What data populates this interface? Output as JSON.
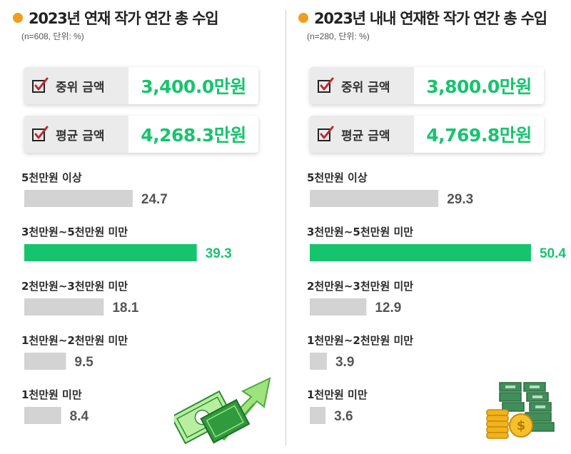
{
  "colors": {
    "accent": "#f39c1f",
    "highlight": "#17c46e",
    "bar": "#d3d3d3",
    "value_text": "#555555",
    "check": "#c0282c"
  },
  "panels": [
    {
      "title": "2023년 연재 작가 연간 총 수입",
      "subtitle": "(n=608, 단위: %)",
      "stats": [
        {
          "label": "중위 금액",
          "value": "3,400.0만원"
        },
        {
          "label": "평균 금액",
          "value": "4,268.3만원"
        }
      ],
      "illustration": "money-arrow-icon"
    },
    {
      "title": "2023년 내내 연재한 작가 연간 총 수입",
      "subtitle": "(n=280, 단위: %)",
      "stats": [
        {
          "label": "중위 금액",
          "value": "3,800.0만원"
        },
        {
          "label": "평균 금액",
          "value": "4,769.8만원"
        }
      ],
      "illustration": "money-coins-icon"
    }
  ],
  "chart_data": [
    {
      "type": "bar",
      "orientation": "horizontal",
      "title": "2023년 연재 작가 연간 총 수입",
      "categories": [
        "5천만원 이상",
        "3천만원~5천만원 미만",
        "2천만원~3천만원 미만",
        "1천만원~2천만원 미만",
        "1천만원 미만"
      ],
      "values": [
        24.7,
        39.3,
        18.1,
        9.5,
        8.4
      ],
      "highlight_index": 1
    },
    {
      "type": "bar",
      "orientation": "horizontal",
      "title": "2023년 내내 연재한 작가 연간 총 수입",
      "categories": [
        "5천만원 이상",
        "3천만원~5천만원 미만",
        "2천만원~3천만원 미만",
        "1천만원~2천만원 미만",
        "1천만원 미만"
      ],
      "values": [
        29.3,
        50.4,
        12.9,
        3.9,
        3.6
      ],
      "highlight_index": 1
    }
  ]
}
